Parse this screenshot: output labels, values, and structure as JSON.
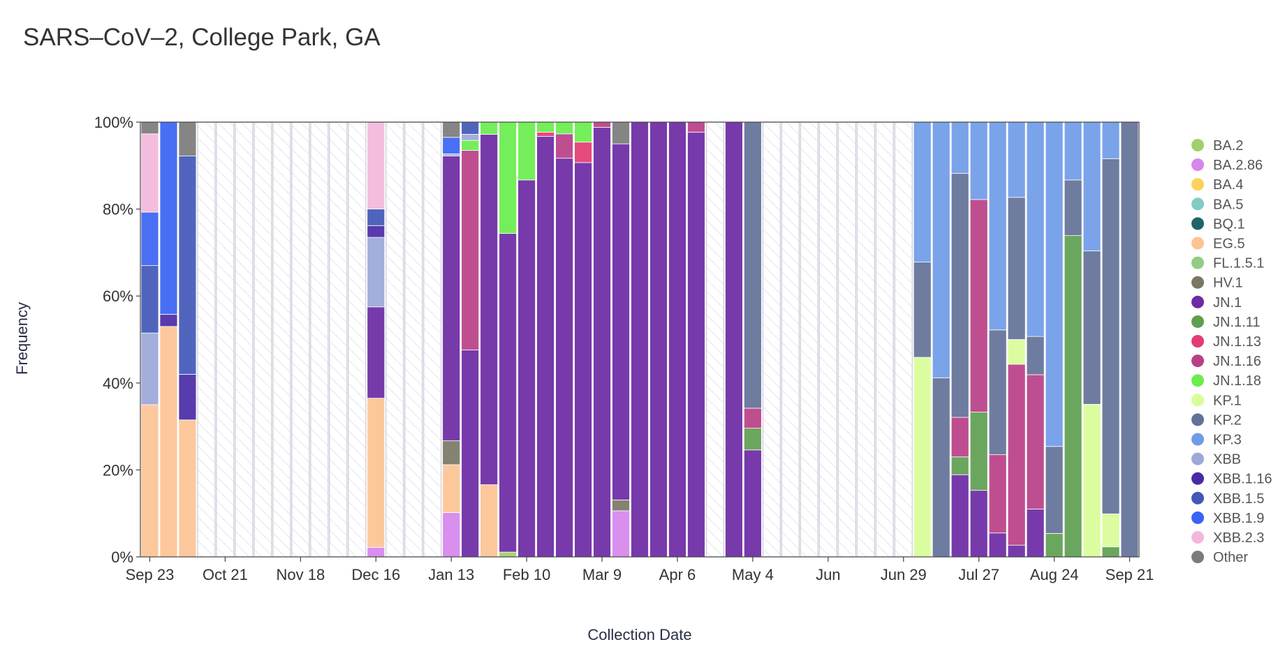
{
  "chart_data": {
    "type": "bar",
    "stacked": true,
    "normalized": true,
    "title": "SARS–CoV–2, College Park, GA",
    "xlabel": "Collection Date",
    "ylabel": "Frequency",
    "ylim": [
      0,
      100
    ],
    "yticks": [
      "0%",
      "20%",
      "40%",
      "60%",
      "80%",
      "100%"
    ],
    "xticks": [
      {
        "label": "Sep 23",
        "week": 0
      },
      {
        "label": "Oct 21",
        "week": 4
      },
      {
        "label": "Nov 18",
        "week": 8
      },
      {
        "label": "Dec 16",
        "week": 12
      },
      {
        "label": "Jan 13",
        "week": 16
      },
      {
        "label": "Feb 10",
        "week": 20
      },
      {
        "label": "Mar 9",
        "week": 24
      },
      {
        "label": "Apr 6",
        "week": 28
      },
      {
        "label": "May 4",
        "week": 32
      },
      {
        "label": "Jun",
        "week": 36
      },
      {
        "label": "Jun 29",
        "week": 40
      },
      {
        "label": "Jul 27",
        "week": 44
      },
      {
        "label": "Aug 24",
        "week": 48
      },
      {
        "label": "Sep 21",
        "week": 52
      }
    ],
    "legend": [
      {
        "name": "BA.2",
        "color": "#a3cf6a"
      },
      {
        "name": "BA.2.86",
        "color": "#d686ec"
      },
      {
        "name": "BA.4",
        "color": "#fbd35a"
      },
      {
        "name": "BA.5",
        "color": "#83cbc3"
      },
      {
        "name": "BQ.1",
        "color": "#1f6568"
      },
      {
        "name": "EG.5",
        "color": "#fcc493"
      },
      {
        "name": "FL.1.5.1",
        "color": "#93cc84"
      },
      {
        "name": "HV.1",
        "color": "#7a7864"
      },
      {
        "name": "JN.1",
        "color": "#6c2aa3"
      },
      {
        "name": "JN.1.11",
        "color": "#5f9f52"
      },
      {
        "name": "JN.1.13",
        "color": "#e33c72"
      },
      {
        "name": "JN.1.16",
        "color": "#b94087"
      },
      {
        "name": "JN.1.18",
        "color": "#6aed4e"
      },
      {
        "name": "KP.1",
        "color": "#d9fd98"
      },
      {
        "name": "KP.2",
        "color": "#627197"
      },
      {
        "name": "KP.3",
        "color": "#6f9ce8"
      },
      {
        "name": "XBB",
        "color": "#9ca8d8"
      },
      {
        "name": "XBB.1.16",
        "color": "#4a2ba6"
      },
      {
        "name": "XBB.1.5",
        "color": "#4357b8"
      },
      {
        "name": "XBB.1.9",
        "color": "#3a63f4"
      },
      {
        "name": "XBB.2.3",
        "color": "#f2b8dc"
      },
      {
        "name": "Other",
        "color": "#7b7b7b"
      }
    ],
    "bars": [
      {
        "week": 0,
        "segments": [
          [
            "EG.5",
            35
          ],
          [
            "XBB",
            16.5
          ],
          [
            "XBB.1.5",
            15.5
          ],
          [
            "XBB.1.9",
            12.3
          ],
          [
            "XBB.2.3",
            18
          ],
          [
            "Other",
            2.7
          ]
        ]
      },
      {
        "week": 1,
        "segments": [
          [
            "EG.5",
            53
          ],
          [
            "XBB.1.16",
            2.8
          ],
          [
            "XBB.1.9",
            44.2
          ]
        ]
      },
      {
        "week": 2,
        "segments": [
          [
            "EG.5",
            31.5
          ],
          [
            "XBB.1.16",
            10.5
          ],
          [
            "XBB.1.5",
            50.2
          ],
          [
            "Other",
            7.8
          ]
        ]
      },
      {
        "week": 12,
        "segments": [
          [
            "BA.2.86",
            2.2
          ],
          [
            "EG.5",
            34.3
          ],
          [
            "JN.1",
            21
          ],
          [
            "XBB",
            16
          ],
          [
            "XBB.1.16",
            2.7
          ],
          [
            "XBB.1.5",
            3.8
          ],
          [
            "XBB.2.3",
            20
          ]
        ]
      },
      {
        "week": 16,
        "segments": [
          [
            "BA.2.86",
            10.2
          ],
          [
            "EG.5",
            11
          ],
          [
            "HV.1",
            5.5
          ],
          [
            "JN.1",
            65.5
          ],
          [
            "XBB",
            0.5
          ],
          [
            "XBB.1.9",
            3.8
          ],
          [
            "Other",
            3.5
          ]
        ]
      },
      {
        "week": 17,
        "segments": [
          [
            "JN.1",
            47.6
          ],
          [
            "JN.1.16",
            45.9
          ],
          [
            "JN.1.18",
            2.3
          ],
          [
            "XBB",
            1.4
          ],
          [
            "XBB.1.5",
            2.8
          ]
        ]
      },
      {
        "week": 18,
        "segments": [
          [
            "EG.5",
            16.6
          ],
          [
            "JN.1",
            80.6
          ],
          [
            "JN.1.18",
            2.8
          ]
        ]
      },
      {
        "week": 19,
        "segments": [
          [
            "BA.2",
            1.1
          ],
          [
            "JN.1",
            73.3
          ],
          [
            "JN.1.18",
            25.6
          ]
        ]
      },
      {
        "week": 20,
        "segments": [
          [
            "JN.1",
            86.7
          ],
          [
            "JN.1.18",
            13.3
          ]
        ]
      },
      {
        "week": 21,
        "segments": [
          [
            "JN.1",
            96.7
          ],
          [
            "JN.1.13",
            1
          ],
          [
            "JN.1.18",
            2.3
          ]
        ]
      },
      {
        "week": 22,
        "segments": [
          [
            "JN.1",
            91.7
          ],
          [
            "JN.1.16",
            5.6
          ],
          [
            "JN.1.18",
            2.7
          ]
        ]
      },
      {
        "week": 23,
        "segments": [
          [
            "JN.1",
            90.7
          ],
          [
            "JN.1.13",
            4.7
          ],
          [
            "JN.1.18",
            4.6
          ]
        ]
      },
      {
        "week": 24,
        "segments": [
          [
            "JN.1",
            98.8
          ],
          [
            "JN.1.16",
            1.2
          ]
        ]
      },
      {
        "week": 25,
        "segments": [
          [
            "BA.2.86",
            10.6
          ],
          [
            "HV.1",
            2.5
          ],
          [
            "JN.1",
            81.9
          ],
          [
            "Other",
            5
          ]
        ]
      },
      {
        "week": 26,
        "segments": [
          [
            "JN.1",
            100
          ]
        ]
      },
      {
        "week": 27,
        "segments": [
          [
            "JN.1",
            100
          ]
        ]
      },
      {
        "week": 28,
        "segments": [
          [
            "JN.1",
            100
          ]
        ]
      },
      {
        "week": 29,
        "segments": [
          [
            "JN.1",
            97.7
          ],
          [
            "JN.1.16",
            2.3
          ]
        ]
      },
      {
        "week": 31,
        "segments": [
          [
            "JN.1",
            100
          ]
        ]
      },
      {
        "week": 32,
        "segments": [
          [
            "JN.1",
            24.6
          ],
          [
            "JN.1.11",
            5
          ],
          [
            "JN.1.16",
            4.6
          ],
          [
            "KP.2",
            65.8
          ]
        ]
      },
      {
        "week": 41,
        "segments": [
          [
            "KP.1",
            45.9
          ],
          [
            "KP.2",
            21.9
          ],
          [
            "KP.3",
            32.2
          ]
        ]
      },
      {
        "week": 42,
        "segments": [
          [
            "KP.2",
            41.2
          ],
          [
            "KP.3",
            58.8
          ]
        ]
      },
      {
        "week": 43,
        "segments": [
          [
            "JN.1",
            18.9
          ],
          [
            "JN.1.11",
            4.1
          ],
          [
            "JN.1.16",
            9.1
          ],
          [
            "KP.2",
            56.1
          ],
          [
            "KP.3",
            11.8
          ]
        ]
      },
      {
        "week": 44,
        "segments": [
          [
            "JN.1",
            15.3
          ],
          [
            "JN.1.11",
            18
          ],
          [
            "JN.1.16",
            48.9
          ],
          [
            "KP.3",
            17.8
          ]
        ]
      },
      {
        "week": 45,
        "segments": [
          [
            "JN.1",
            5.5
          ],
          [
            "JN.1.16",
            18
          ],
          [
            "KP.2",
            28.7
          ],
          [
            "KP.3",
            47.8
          ]
        ]
      },
      {
        "week": 46,
        "segments": [
          [
            "JN.1",
            2.7
          ],
          [
            "JN.1.16",
            41.6
          ],
          [
            "KP.1",
            5.7
          ],
          [
            "KP.2",
            32.7
          ],
          [
            "KP.3",
            17.3
          ]
        ]
      },
      {
        "week": 47,
        "segments": [
          [
            "JN.1",
            11
          ],
          [
            "JN.1.16",
            30.9
          ],
          [
            "KP.2",
            8.8
          ],
          [
            "KP.3",
            49.3
          ]
        ]
      },
      {
        "week": 48,
        "segments": [
          [
            "JN.1.11",
            5.4
          ],
          [
            "KP.2",
            20
          ],
          [
            "KP.3",
            74.6
          ]
        ]
      },
      {
        "week": 49,
        "segments": [
          [
            "JN.1.11",
            73.9
          ],
          [
            "KP.2",
            12.8
          ],
          [
            "KP.3",
            13.3
          ]
        ]
      },
      {
        "week": 50,
        "segments": [
          [
            "KP.1",
            35.1
          ],
          [
            "KP.2",
            35.3
          ],
          [
            "KP.3",
            29.6
          ]
        ]
      },
      {
        "week": 51,
        "segments": [
          [
            "JN.1.11",
            2.3
          ],
          [
            "KP.1",
            7.6
          ],
          [
            "KP.2",
            81.7
          ],
          [
            "KP.3",
            8.4
          ]
        ]
      },
      {
        "week": 52,
        "segments": [
          [
            "KP.2",
            100
          ]
        ]
      }
    ],
    "total_weeks": 53
  }
}
